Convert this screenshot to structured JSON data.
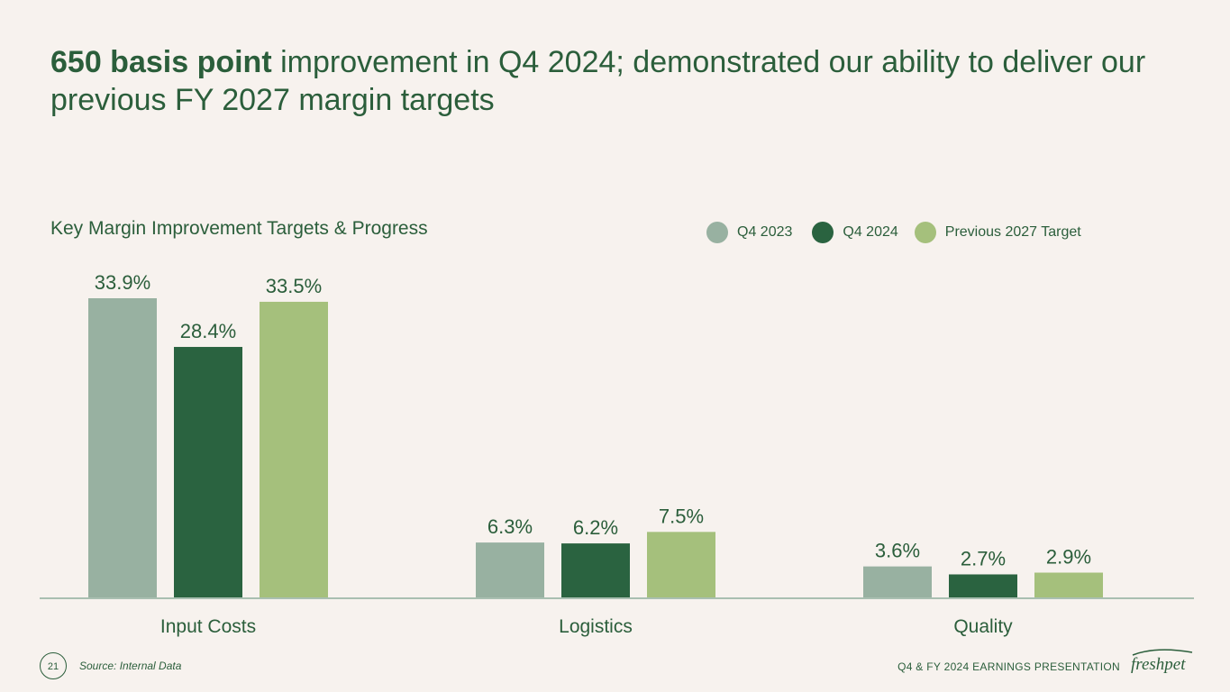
{
  "slide": {
    "title_bold": "650 basis point",
    "title_rest": " improvement in Q4 2024; demonstrated our ability to deliver our previous FY 2027 margin targets",
    "page_number": "21",
    "source": "Source: Internal Data",
    "presentation_name": "Q4 & FY 2024 EARNINGS PRESENTATION",
    "logo_text": "freshpet"
  },
  "colors": {
    "q4_2023": "#98b1a1",
    "q4_2024": "#2a6340",
    "target_2027": "#a5c07c",
    "text": "#2b5e3b",
    "axis": "#a9bfb1",
    "background": "#f7f2ee"
  },
  "chart_data": {
    "type": "bar",
    "title": "Key Margin Improvement Targets & Progress",
    "categories": [
      "Input Costs",
      "Logistics",
      "Quality"
    ],
    "series": [
      {
        "name": "Q4 2023",
        "values": [
          33.9,
          6.3,
          3.6
        ],
        "labels": [
          "33.9%",
          "6.3%",
          "3.6%"
        ]
      },
      {
        "name": "Q4 2024",
        "values": [
          28.4,
          6.2,
          2.7
        ],
        "labels": [
          "28.4%",
          "6.2%",
          "2.7%"
        ]
      },
      {
        "name": "Previous 2027 Target",
        "values": [
          33.5,
          7.5,
          2.9
        ],
        "labels": [
          "33.5%",
          "7.5%",
          "2.9%"
        ]
      }
    ],
    "ylim": [
      0,
      34
    ],
    "legend_position": "top-right",
    "grid": false
  }
}
